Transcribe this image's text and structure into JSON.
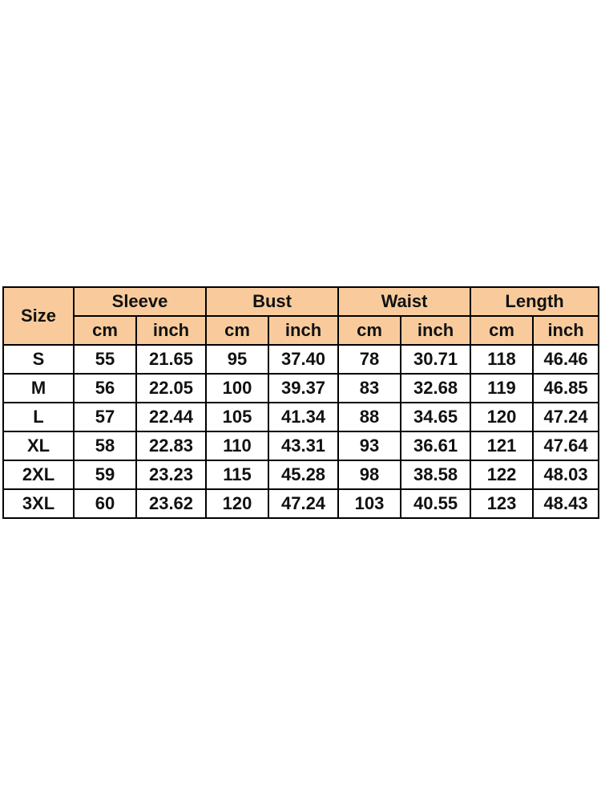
{
  "table": {
    "size_header": "Size",
    "groups": [
      {
        "label": "Sleeve",
        "units": [
          "cm",
          "inch"
        ]
      },
      {
        "label": "Bust",
        "units": [
          "cm",
          "inch"
        ]
      },
      {
        "label": "Waist",
        "units": [
          "cm",
          "inch"
        ]
      },
      {
        "label": "Length",
        "units": [
          "cm",
          "inch"
        ]
      }
    ],
    "rows": [
      {
        "size": "S",
        "values": [
          "55",
          "21.65",
          "95",
          "37.40",
          "78",
          "30.71",
          "118",
          "46.46"
        ]
      },
      {
        "size": "M",
        "values": [
          "56",
          "22.05",
          "100",
          "39.37",
          "83",
          "32.68",
          "119",
          "46.85"
        ]
      },
      {
        "size": "L",
        "values": [
          "57",
          "22.44",
          "105",
          "41.34",
          "88",
          "34.65",
          "120",
          "47.24"
        ]
      },
      {
        "size": "XL",
        "values": [
          "58",
          "22.83",
          "110",
          "43.31",
          "93",
          "36.61",
          "121",
          "47.64"
        ]
      },
      {
        "size": "2XL",
        "values": [
          "59",
          "23.23",
          "115",
          "45.28",
          "98",
          "38.58",
          "122",
          "48.03"
        ]
      },
      {
        "size": "3XL",
        "values": [
          "60",
          "23.62",
          "120",
          "47.24",
          "103",
          "40.55",
          "123",
          "48.43"
        ]
      }
    ],
    "header_color": "#f9cb9c",
    "border_color": "#000000"
  }
}
